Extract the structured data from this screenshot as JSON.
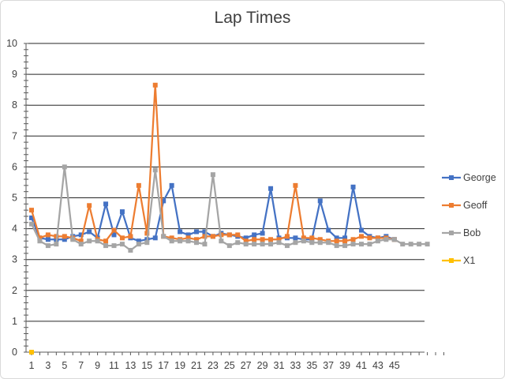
{
  "chart_data": {
    "type": "line",
    "title": "Lap Times",
    "xlabel": "",
    "ylabel": "",
    "ylim": [
      0,
      10
    ],
    "yticks": [
      0,
      1,
      2,
      3,
      4,
      5,
      6,
      7,
      8,
      9,
      10
    ],
    "xlim": [
      1,
      51
    ],
    "xticks": [
      1,
      3,
      5,
      7,
      9,
      11,
      13,
      15,
      17,
      19,
      21,
      23,
      25,
      27,
      29,
      31,
      33,
      35,
      37,
      39,
      41,
      43,
      45
    ],
    "grid": "horizontal",
    "legend_position": "right",
    "series": [
      {
        "name": "George",
        "color": "#4472C4",
        "x": [
          1,
          2,
          3,
          4,
          5,
          6,
          7,
          8,
          9,
          10,
          11,
          12,
          13,
          14,
          15,
          16,
          17,
          18,
          19,
          20,
          21,
          22,
          23,
          24,
          25,
          26,
          27,
          28,
          29,
          30,
          31,
          32,
          33,
          34,
          35,
          36,
          37,
          38,
          39,
          40,
          41,
          42,
          43,
          44,
          45
        ],
        "values": [
          4.35,
          3.7,
          3.65,
          3.65,
          3.65,
          3.75,
          3.8,
          3.9,
          3.7,
          4.8,
          3.8,
          4.55,
          3.7,
          3.6,
          3.65,
          3.7,
          4.9,
          5.4,
          3.9,
          3.8,
          3.9,
          3.9,
          3.75,
          3.85,
          3.8,
          3.75,
          3.7,
          3.8,
          3.85,
          5.3,
          3.7,
          3.7,
          3.7,
          3.65,
          3.65,
          4.9,
          3.95,
          3.7,
          3.7,
          5.35,
          3.95,
          3.75,
          3.7,
          3.75,
          3.65
        ]
      },
      {
        "name": "Geoff",
        "color": "#ED7D31",
        "x": [
          1,
          2,
          3,
          4,
          5,
          6,
          7,
          8,
          9,
          10,
          11,
          12,
          13,
          14,
          15,
          16,
          17,
          18,
          19,
          20,
          21,
          22,
          23,
          24,
          25,
          26,
          27,
          28,
          29,
          30,
          31,
          32,
          33,
          34,
          35,
          36,
          37,
          38,
          39,
          40,
          41,
          42,
          43,
          44,
          45
        ],
        "values": [
          4.6,
          3.7,
          3.8,
          3.75,
          3.75,
          3.7,
          3.6,
          4.75,
          3.65,
          3.6,
          3.95,
          3.7,
          3.75,
          5.4,
          3.85,
          8.65,
          3.75,
          3.7,
          3.65,
          3.7,
          3.65,
          3.75,
          3.75,
          3.8,
          3.8,
          3.8,
          3.6,
          3.65,
          3.65,
          3.65,
          3.65,
          3.75,
          5.4,
          3.7,
          3.7,
          3.65,
          3.6,
          3.6,
          3.6,
          3.65,
          3.75,
          3.7,
          3.7,
          3.7,
          3.65
        ]
      },
      {
        "name": "Bob",
        "color": "#A5A5A5",
        "x": [
          1,
          2,
          3,
          4,
          5,
          6,
          7,
          8,
          9,
          10,
          11,
          12,
          13,
          14,
          15,
          16,
          17,
          18,
          19,
          20,
          21,
          22,
          23,
          24,
          25,
          26,
          27,
          28,
          29,
          30,
          31,
          32,
          33,
          34,
          35,
          36,
          37,
          38,
          39,
          40,
          41,
          42,
          43,
          44,
          45,
          46,
          47,
          48,
          49
        ],
        "values": [
          4.15,
          3.6,
          3.45,
          3.5,
          6.0,
          3.65,
          3.5,
          3.6,
          3.6,
          3.45,
          3.45,
          3.5,
          3.3,
          3.5,
          3.55,
          5.9,
          3.75,
          3.6,
          3.6,
          3.6,
          3.55,
          3.5,
          5.75,
          3.6,
          3.45,
          3.55,
          3.5,
          3.5,
          3.5,
          3.5,
          3.55,
          3.45,
          3.55,
          3.6,
          3.55,
          3.55,
          3.55,
          3.45,
          3.45,
          3.5,
          3.5,
          3.5,
          3.6,
          3.65,
          3.65,
          3.5,
          3.5,
          3.5,
          3.5
        ]
      },
      {
        "name": "X1",
        "color": "#FFC000",
        "x": [
          1
        ],
        "values": [
          0
        ]
      }
    ]
  }
}
